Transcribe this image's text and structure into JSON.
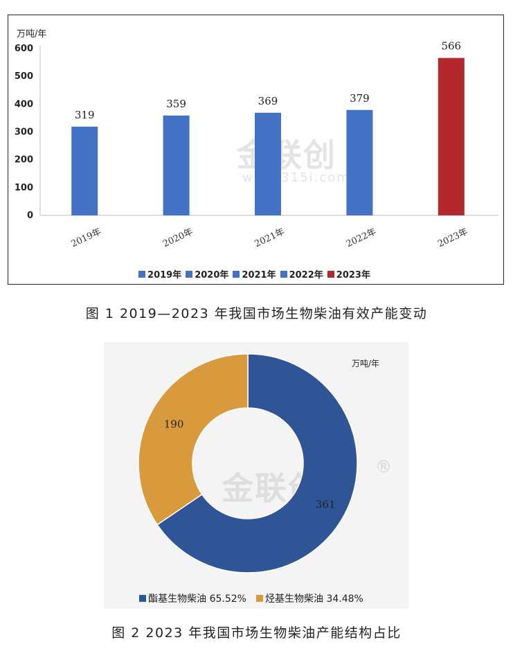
{
  "figure1": {
    "caption": "图 1 2019—2023 年我国市场生物柴油有效产能变动",
    "unit": "万吨/年",
    "watermark_text": "金联创",
    "watermark_url": "www.315i.com"
  },
  "figure2": {
    "caption": "图 2 2023 年我国市场生物柴油产能结构占比",
    "unit": "万吨/年",
    "watermark_text": "金联创"
  },
  "chart_data": [
    {
      "type": "bar",
      "categories": [
        "2019年",
        "2020年",
        "2021年",
        "2022年",
        "2023年"
      ],
      "values": [
        319,
        359,
        369,
        379,
        566
      ],
      "value_labels": [
        "319",
        "359",
        "369",
        "379",
        "566"
      ],
      "colors": [
        "#4472c4",
        "#4472c4",
        "#4472c4",
        "#4472c4",
        "#b3282d"
      ],
      "ylabel": "万吨/年",
      "ylim": [
        0,
        600
      ],
      "yticks": [
        "0",
        "100",
        "200",
        "300",
        "400",
        "500",
        "600"
      ],
      "ytick_values": [
        0,
        100,
        200,
        300,
        400,
        500,
        600
      ],
      "grid": false,
      "legend": {
        "placement": "bottom",
        "entries": [
          "2019年",
          "2020年",
          "2021年",
          "2022年",
          "2023年"
        ]
      }
    },
    {
      "type": "pie",
      "donut": true,
      "labels": [
        "酯基生物柴油",
        "烃基生物柴油"
      ],
      "values": [
        361,
        190
      ],
      "value_labels": [
        "361",
        "190"
      ],
      "percent_labels": [
        "65.52%",
        "34.48%"
      ],
      "colors": [
        "#2f5597",
        "#d99a3e"
      ],
      "unit": "万吨/年",
      "legend": {
        "placement": "bottom",
        "entries": [
          "酯基生物柴油 65.52%",
          "烃基生物柴油 34.48%"
        ]
      }
    }
  ]
}
